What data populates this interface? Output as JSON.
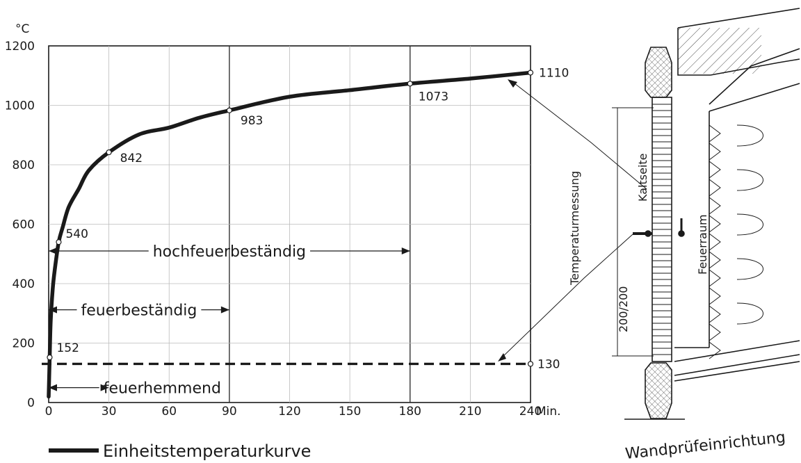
{
  "chart_data": {
    "type": "line",
    "y_unit": "°C",
    "x_unit": "Min.",
    "xlim": [
      0,
      240
    ],
    "ylim": [
      0,
      1200
    ],
    "x_ticks": [
      0,
      30,
      60,
      90,
      120,
      150,
      180,
      210,
      240
    ],
    "y_ticks": [
      0,
      200,
      400,
      600,
      800,
      1000,
      1200
    ],
    "grid": true,
    "series": [
      {
        "name": "Einheitstemperaturkurve",
        "color": "#1a1a1a",
        "x": [
          0,
          0.5,
          1,
          2,
          3,
          5,
          7,
          10,
          15,
          20,
          30,
          45,
          60,
          75,
          90,
          120,
          150,
          180,
          210,
          240
        ],
        "y": [
          20,
          152,
          273,
          381,
          445,
          540,
          590,
          658,
          719,
          781,
          842,
          902,
          925,
          958,
          983,
          1029,
          1051,
          1073,
          1090,
          1110
        ]
      }
    ],
    "reference_line": {
      "y": 130,
      "label": "130",
      "style": "dashed"
    },
    "point_labels": [
      {
        "x": 0.5,
        "y": 152,
        "label": "152"
      },
      {
        "x": 5,
        "y": 540,
        "label": "540"
      },
      {
        "x": 30,
        "y": 842,
        "label": "842"
      },
      {
        "x": 90,
        "y": 983,
        "label": "983"
      },
      {
        "x": 180,
        "y": 1073,
        "label": "1073"
      },
      {
        "x": 240,
        "y": 1110,
        "label": "1110"
      }
    ],
    "bands": [
      {
        "label": "hochfeuerbeständig",
        "from": 0,
        "to": 180,
        "y": 510
      },
      {
        "label": "feuerbeständig",
        "from": 0,
        "to": 90,
        "y": 312
      },
      {
        "label": "feuerhemmend",
        "from": 0,
        "to": 30,
        "y": 50
      }
    ],
    "legend": {
      "label": "Einheitstemperaturkurve",
      "placement": "bottom-left"
    }
  },
  "diagram": {
    "caption": "Wandprüfeinrichtung",
    "labels": {
      "measurement": "Temperaturmessung",
      "cold_side": "Kaltseite",
      "fire_chamber": "Feuerraum",
      "dimension": "200/200"
    }
  }
}
